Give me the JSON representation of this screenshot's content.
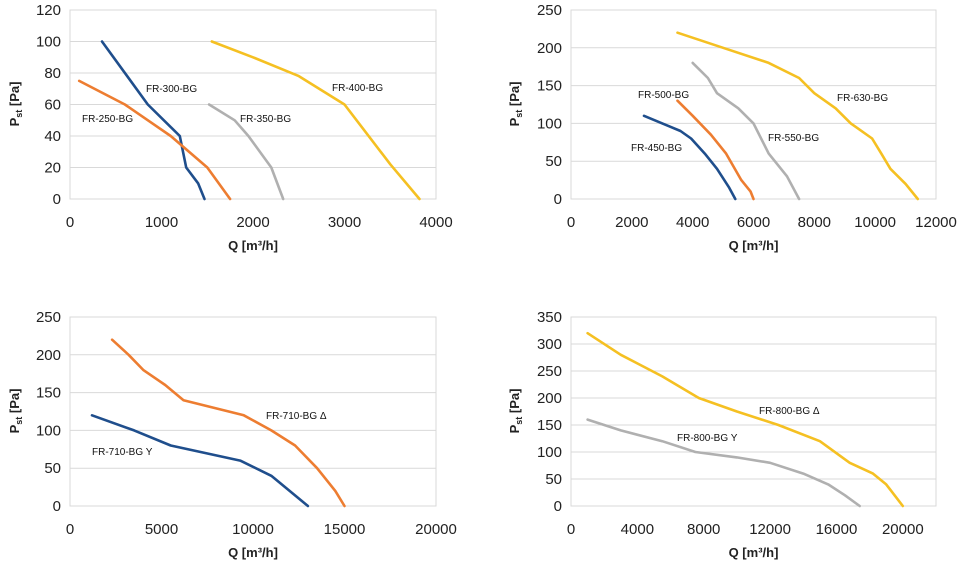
{
  "chart_data": [
    {
      "type": "line",
      "xlabel": "Q [m³/h]",
      "ylabel_main": "P",
      "ylabel_sub": "st",
      "ylabel_tail": " [Pa]",
      "xlim": [
        0,
        4000
      ],
      "ylim": [
        0,
        120
      ],
      "x_ticks": [
        0,
        1000,
        2000,
        3000,
        4000
      ],
      "y_ticks": [
        0,
        20,
        40,
        60,
        80,
        100,
        120
      ],
      "x_tick_labels": [
        "0",
        "1000",
        "2000",
        "3000",
        "4000"
      ],
      "y_tick_labels": [
        "0",
        "20",
        "40",
        "60",
        "80",
        "100",
        "120"
      ],
      "grid": "horizontal",
      "series": [
        {
          "name": "FR-300-BG",
          "color": "#1f4e8c",
          "x": [
            350,
            850,
            1200,
            1270,
            1400,
            1470
          ],
          "y": [
            100,
            60,
            40,
            20,
            10,
            0
          ]
        },
        {
          "name": "FR-250-BG",
          "color": "#ed7d31",
          "x": [
            100,
            600,
            1100,
            1500,
            1750
          ],
          "y": [
            75,
            60,
            40,
            20,
            0
          ]
        },
        {
          "name": "FR-350-BG",
          "color": "#b0b0b0",
          "x": [
            1520,
            1800,
            1950,
            2200,
            2330
          ],
          "y": [
            60,
            50,
            40,
            20,
            0
          ]
        },
        {
          "name": "FR-400-BG",
          "color": "#f5c022",
          "x": [
            1550,
            2000,
            2500,
            3000,
            3500,
            3820
          ],
          "y": [
            100,
            90,
            78,
            60,
            22,
            0
          ]
        }
      ]
    },
    {
      "type": "line",
      "xlabel": "Q [m³/h]",
      "ylabel_main": "P",
      "ylabel_sub": "st",
      "ylabel_tail": " [Pa]",
      "xlim": [
        0,
        12000
      ],
      "ylim": [
        0,
        250
      ],
      "x_ticks": [
        0,
        2000,
        4000,
        6000,
        8000,
        10000,
        12000
      ],
      "y_ticks": [
        0,
        50,
        100,
        150,
        200,
        250
      ],
      "x_tick_labels": [
        "0",
        "2000",
        "4000",
        "6000",
        "8000",
        "10000",
        "12000"
      ],
      "y_tick_labels": [
        "0",
        "50",
        "100",
        "150",
        "200",
        "250"
      ],
      "grid": "horizontal",
      "series": [
        {
          "name": "FR-450-BG",
          "color": "#1f4e8c",
          "x": [
            2400,
            3000,
            3600,
            3950,
            4400,
            4800,
            5200,
            5400
          ],
          "y": [
            110,
            100,
            90,
            80,
            60,
            40,
            15,
            0
          ]
        },
        {
          "name": "FR-500-BG",
          "color": "#ed7d31",
          "x": [
            3500,
            4000,
            4600,
            5100,
            5600,
            5900,
            6000
          ],
          "y": [
            130,
            110,
            85,
            60,
            25,
            10,
            0
          ]
        },
        {
          "name": "FR-550-BG",
          "color": "#b0b0b0",
          "x": [
            4000,
            4500,
            4800,
            5500,
            6000,
            6500,
            7100,
            7500
          ],
          "y": [
            180,
            160,
            140,
            120,
            100,
            60,
            30,
            0
          ]
        },
        {
          "name": "FR-630-BG",
          "color": "#f5c022",
          "x": [
            3500,
            5000,
            6500,
            7500,
            8000,
            8700,
            9200,
            9900,
            10200,
            10500,
            11000,
            11400
          ],
          "y": [
            220,
            200,
            180,
            160,
            140,
            120,
            100,
            80,
            60,
            40,
            20,
            0
          ]
        }
      ]
    },
    {
      "type": "line",
      "xlabel": "Q [m³/h]",
      "ylabel_main": "P",
      "ylabel_sub": "st",
      "ylabel_tail": " [Pa]",
      "xlim": [
        0,
        20000
      ],
      "ylim": [
        0,
        250
      ],
      "x_ticks": [
        0,
        5000,
        10000,
        15000,
        20000
      ],
      "y_ticks": [
        0,
        50,
        100,
        150,
        200,
        250
      ],
      "x_tick_labels": [
        "0",
        "5000",
        "10000",
        "15000",
        "20000"
      ],
      "y_tick_labels": [
        "0",
        "50",
        "100",
        "150",
        "200",
        "250"
      ],
      "grid": "horizontal",
      "series": [
        {
          "name": "FR-710-BG Y",
          "color": "#1f4e8c",
          "x": [
            1200,
            3500,
            5500,
            9300,
            11000,
            13000
          ],
          "y": [
            120,
            100,
            80,
            60,
            40,
            0
          ]
        },
        {
          "name": "FR-710-BG Δ",
          "color": "#ed7d31",
          "x": [
            2300,
            3200,
            4000,
            5200,
            6200,
            9500,
            11000,
            12300,
            13500,
            14500,
            15000
          ],
          "y": [
            220,
            200,
            180,
            160,
            140,
            120,
            100,
            80,
            50,
            20,
            0
          ]
        }
      ]
    },
    {
      "type": "line",
      "xlabel": "Q [m³/h]",
      "ylabel_main": "P",
      "ylabel_sub": "st",
      "ylabel_tail": " [Pa]",
      "xlim": [
        0,
        22000
      ],
      "ylim": [
        0,
        350
      ],
      "x_ticks": [
        0,
        4000,
        8000,
        12000,
        16000,
        20000
      ],
      "y_ticks": [
        0,
        50,
        100,
        150,
        200,
        250,
        300,
        350
      ],
      "x_tick_labels": [
        "0",
        "4000",
        "8000",
        "12000",
        "16000",
        "20000"
      ],
      "y_tick_labels": [
        "0",
        "50",
        "100",
        "150",
        "200",
        "250",
        "300",
        "350"
      ],
      "grid": "horizontal",
      "series": [
        {
          "name": "FR-800-BG Y",
          "color": "#b0b0b0",
          "x": [
            1000,
            3000,
            5500,
            7500,
            10000,
            12000,
            14000,
            15500,
            16500,
            17400
          ],
          "y": [
            160,
            140,
            120,
            100,
            90,
            80,
            60,
            40,
            20,
            0
          ]
        },
        {
          "name": "FR-800-BG Δ",
          "color": "#f5c022",
          "x": [
            1000,
            3000,
            5500,
            7700,
            10000,
            12500,
            15000,
            16800,
            18200,
            19000,
            19500,
            20000
          ],
          "y": [
            320,
            280,
            240,
            200,
            175,
            150,
            120,
            80,
            60,
            40,
            20,
            0
          ]
        }
      ]
    }
  ]
}
